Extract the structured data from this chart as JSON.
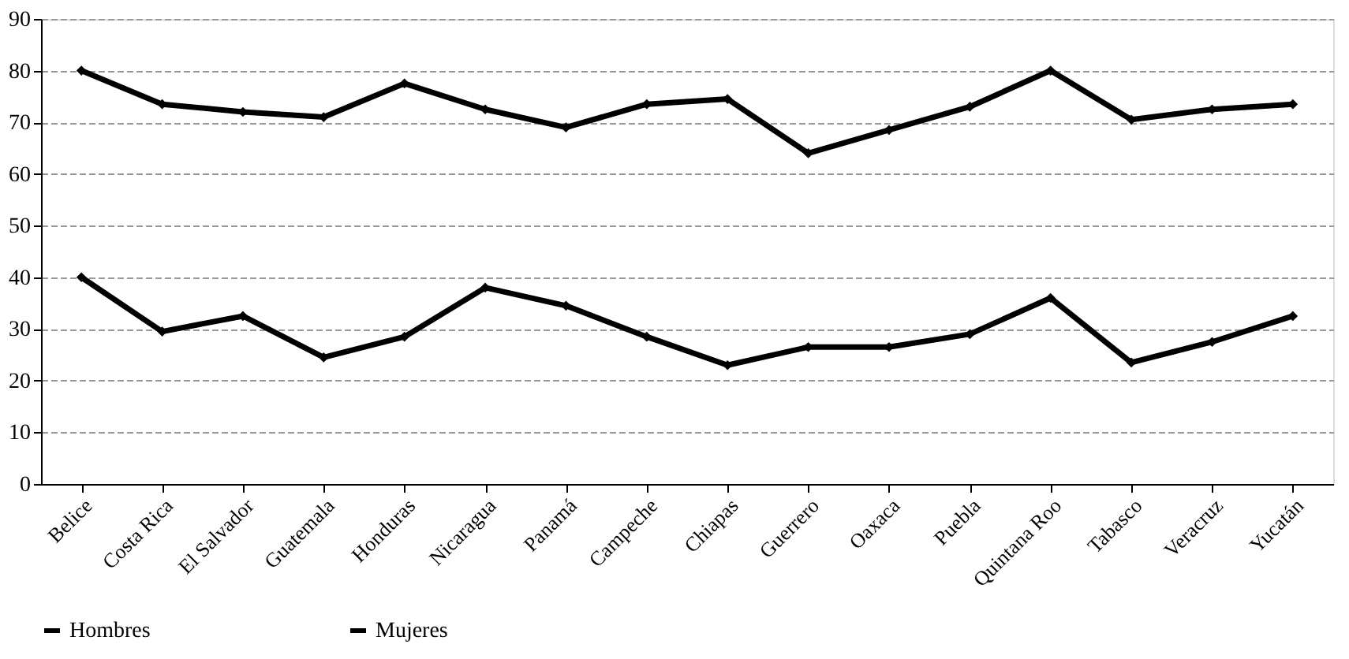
{
  "chart_data": {
    "type": "line",
    "categories": [
      "Belice",
      "Costa Rica",
      "El Salvador",
      "Guatemala",
      "Honduras",
      "Nicaragua",
      "Panamá",
      "Campeche",
      "Chiapas",
      "Guerrero",
      "Oaxaca",
      "Puebla",
      "Quintana Roo",
      "Tabasco",
      "Veracruz",
      "Yucatán"
    ],
    "series": [
      {
        "name": "Hombres",
        "color": "#000000",
        "values": [
          80,
          73.5,
          72,
          71,
          77.5,
          72.5,
          69,
          73.5,
          74.5,
          64,
          68.5,
          73,
          80,
          70.5,
          72.5,
          73.5
        ]
      },
      {
        "name": "Mujeres",
        "color": "#000000",
        "values": [
          40,
          29.5,
          32.5,
          24.5,
          28.5,
          38,
          34.5,
          28.5,
          23,
          26.5,
          26.5,
          29,
          36,
          23.5,
          27.5,
          32.5
        ]
      }
    ],
    "ylim": [
      0,
      90
    ],
    "yticks": [
      0,
      10,
      20,
      30,
      40,
      50,
      60,
      70,
      80,
      90
    ],
    "grid": "y",
    "legend": "bottom",
    "marker": "diamond",
    "line_style": "solid"
  }
}
